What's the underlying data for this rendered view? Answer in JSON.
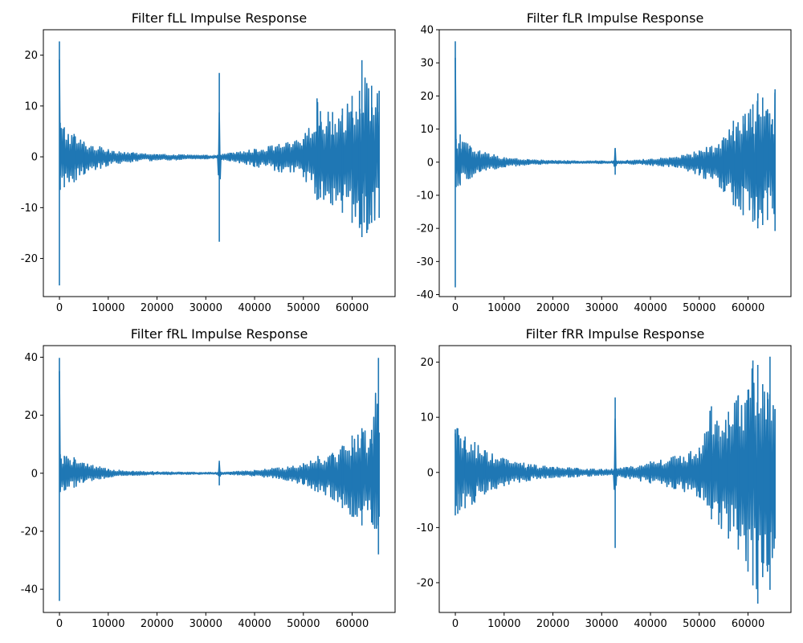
{
  "style": {
    "line_color": "#1f77b4",
    "background": "#ffffff"
  },
  "chart_data": [
    {
      "type": "line",
      "title": "Filter fLL Impulse Response",
      "xlabel": "",
      "ylabel": "",
      "xlim": [
        -3300,
        68800
      ],
      "ylim": [
        -27.5,
        25
      ],
      "xticks": [
        0,
        10000,
        20000,
        30000,
        40000,
        50000,
        60000
      ],
      "yticks": [
        -20,
        -10,
        0,
        10,
        20
      ],
      "grid": false,
      "series": [
        {
          "x": [
            0,
            150,
            1000,
            3000,
            5000,
            10000,
            15000,
            20000,
            25000,
            30000,
            32500,
            32768,
            33000,
            35000,
            40000,
            45000,
            50000,
            52800,
            53500,
            56000,
            58000,
            60000,
            61500,
            62000,
            63000,
            64000,
            65536
          ],
          "upper": [
            22.7,
            6.7,
            5.8,
            4.5,
            3.0,
            1.5,
            0.8,
            0.5,
            0.4,
            0.3,
            0.3,
            16.5,
            0.4,
            0.8,
            1.5,
            2.5,
            3.5,
            11.5,
            9.0,
            8.8,
            9.5,
            12.0,
            13.0,
            19.0,
            14.5,
            14.0,
            13.0
          ],
          "lower": [
            -25.3,
            -6.5,
            -6.0,
            -5.0,
            -3.5,
            -1.7,
            -1.0,
            -0.7,
            -0.6,
            -0.4,
            -0.4,
            -16.7,
            -0.5,
            -0.9,
            -2.0,
            -3.0,
            -4.0,
            -8.5,
            -8.0,
            -9.5,
            -11.0,
            -13.0,
            -14.0,
            -15.8,
            -15.0,
            -13.0,
            -12.0
          ]
        }
      ]
    },
    {
      "type": "line",
      "title": "Filter fLR Impulse Response",
      "xlabel": "",
      "ylabel": "",
      "xlim": [
        -3300,
        68800
      ],
      "ylim": [
        -40.6,
        40
      ],
      "xticks": [
        0,
        10000,
        20000,
        30000,
        40000,
        50000,
        60000
      ],
      "yticks": [
        -40,
        -30,
        -20,
        -10,
        0,
        10,
        20,
        30,
        40
      ],
      "grid": false,
      "series": [
        {
          "x": [
            0,
            150,
            1000,
            3000,
            5000,
            10000,
            15000,
            20000,
            25000,
            30000,
            32500,
            32768,
            33000,
            35000,
            40000,
            45000,
            50000,
            55000,
            57000,
            59000,
            61000,
            62000,
            63000,
            64000,
            65000,
            65536
          ],
          "upper": [
            36.5,
            7.0,
            8.4,
            5.0,
            3.5,
            1.5,
            0.8,
            0.5,
            0.4,
            0.4,
            0.4,
            4.3,
            0.4,
            0.5,
            1.0,
            1.5,
            3.5,
            7.5,
            12.5,
            14.0,
            17.5,
            20.8,
            19.5,
            16.0,
            13.0,
            22.0
          ],
          "lower": [
            -37.8,
            -7.5,
            -7.0,
            -5.0,
            -3.0,
            -1.5,
            -0.8,
            -0.5,
            -0.4,
            -0.4,
            -0.4,
            -3.8,
            -0.4,
            -0.5,
            -1.0,
            -1.5,
            -4.0,
            -9.0,
            -13.0,
            -16.0,
            -18.0,
            -20.0,
            -19.0,
            -17.5,
            -14.0,
            -20.8
          ]
        }
      ]
    },
    {
      "type": "line",
      "title": "Filter fRL Impulse Response",
      "xlabel": "",
      "ylabel": "",
      "xlim": [
        -3300,
        68800
      ],
      "ylim": [
        -48,
        44
      ],
      "xticks": [
        0,
        10000,
        20000,
        30000,
        40000,
        50000,
        60000
      ],
      "yticks": [
        -40,
        -20,
        0,
        20,
        40
      ],
      "grid": false,
      "series": [
        {
          "x": [
            0,
            150,
            1000,
            3000,
            5000,
            10000,
            15000,
            20000,
            25000,
            30000,
            32500,
            32768,
            33000,
            35000,
            40000,
            45000,
            50000,
            53000,
            56000,
            58000,
            60000,
            62000,
            64000,
            65400,
            65536
          ],
          "upper": [
            39.8,
            6.5,
            6.0,
            5.5,
            3.5,
            1.5,
            0.8,
            0.5,
            0.4,
            0.3,
            0.3,
            4.3,
            0.4,
            0.5,
            1.0,
            2.0,
            3.5,
            6.0,
            7.0,
            9.5,
            13.0,
            15.5,
            15.0,
            39.8,
            14.0
          ],
          "lower": [
            -44.0,
            -6.5,
            -6.0,
            -5.0,
            -3.0,
            -1.5,
            -0.8,
            -0.5,
            -0.4,
            -0.4,
            -0.4,
            -4.2,
            -0.4,
            -0.5,
            -1.0,
            -2.0,
            -4.0,
            -6.5,
            -9.0,
            -12.0,
            -15.0,
            -18.0,
            -17.0,
            -28.0,
            -15.0
          ]
        }
      ]
    },
    {
      "type": "line",
      "title": "Filter fRR Impulse Response",
      "xlabel": "",
      "ylabel": "",
      "xlim": [
        -3300,
        68800
      ],
      "ylim": [
        -25.4,
        23
      ],
      "xticks": [
        0,
        10000,
        20000,
        30000,
        40000,
        50000,
        60000
      ],
      "yticks": [
        -20,
        -10,
        0,
        10,
        20
      ],
      "grid": false,
      "series": [
        {
          "x": [
            0,
            500,
            2000,
            4000,
            6000,
            10000,
            15000,
            20000,
            25000,
            30000,
            32500,
            32768,
            33000,
            35000,
            40000,
            45000,
            50000,
            52500,
            54000,
            56000,
            58000,
            60000,
            61000,
            62000,
            63000,
            64000,
            64500,
            65536
          ],
          "upper": [
            7.8,
            8.0,
            6.5,
            5.5,
            4.0,
            2.5,
            1.5,
            1.0,
            0.8,
            0.6,
            0.6,
            13.6,
            0.6,
            1.0,
            2.0,
            3.0,
            4.5,
            12.0,
            8.5,
            11.0,
            14.0,
            15.0,
            20.3,
            19.5,
            16.0,
            14.5,
            21.0,
            11.5
          ],
          "lower": [
            -7.8,
            -7.5,
            -6.5,
            -5.5,
            -4.0,
            -2.5,
            -1.5,
            -1.0,
            -0.8,
            -0.6,
            -0.6,
            -13.7,
            -0.6,
            -1.0,
            -2.0,
            -3.0,
            -4.5,
            -8.5,
            -9.5,
            -12.0,
            -14.0,
            -18.0,
            -20.5,
            -23.8,
            -19.0,
            -18.0,
            -21.3,
            -12.0
          ]
        }
      ]
    }
  ]
}
